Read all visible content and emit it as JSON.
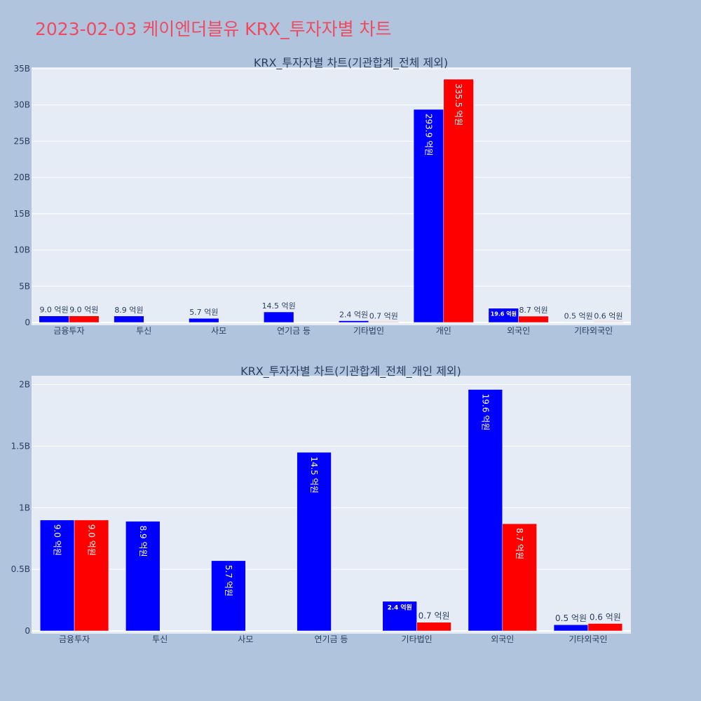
{
  "page": {
    "title": "2023-02-03 케이엔더블유 KRX_투자자별 차트"
  },
  "colors": {
    "background": "#b0c4de",
    "plot_bg": "#e5ecf6",
    "grid": "#ffffff",
    "title": "#ef4a60",
    "text": "#2a3f5f",
    "series": [
      "#0000ff",
      "#ff0000"
    ]
  },
  "chart_data": [
    {
      "type": "bar",
      "title": "KRX_투자자별 차트(기관합계_전체 제외)",
      "categories": [
        "금융투자",
        "투신",
        "사모",
        "연기금 등",
        "기타법인",
        "개인",
        "외국인",
        "기타외국인"
      ],
      "series": [
        {
          "values": [
            900000000,
            890000000,
            570000000,
            1450000000,
            240000000,
            29390000000,
            1960000000,
            50000000
          ],
          "labels": [
            "9.0 억원",
            "8.9 억원",
            "5.7 억원",
            "14.5 억원",
            "2.4 억원",
            "293.9 억원",
            "19.6 억원",
            "0.5 억원"
          ]
        },
        {
          "values": [
            900000000,
            null,
            null,
            null,
            70000000,
            33550000000,
            870000000,
            60000000
          ],
          "labels": [
            "9.0 억원",
            "",
            "",
            "",
            "0.7 억원",
            "335.5 억원",
            "8.7 억원",
            "0.6 억원"
          ]
        }
      ],
      "yticks": [
        0,
        5000000000,
        10000000000,
        15000000000,
        20000000000,
        25000000000,
        30000000000,
        35000000000
      ],
      "ytick_labels": [
        "0",
        "5B",
        "10B",
        "15B",
        "20B",
        "25B",
        "30B",
        "35B"
      ],
      "ylim": [
        0,
        35000000000
      ],
      "grid": true,
      "legend": "none"
    },
    {
      "type": "bar",
      "title": "KRX_투자자별 차트(기관합계_전체_개인 제외)",
      "categories": [
        "금융투자",
        "투신",
        "사모",
        "연기금 등",
        "기타법인",
        "외국인",
        "기타외국인"
      ],
      "series": [
        {
          "values": [
            900000000,
            890000000,
            570000000,
            1450000000,
            240000000,
            1960000000,
            50000000
          ],
          "labels": [
            "9.0 억원",
            "8.9 억원",
            "5.7 억원",
            "14.5 억원",
            "2.4 억원",
            "19.6 억원",
            "0.5 억원"
          ]
        },
        {
          "values": [
            900000000,
            null,
            null,
            null,
            70000000,
            870000000,
            60000000
          ],
          "labels": [
            "9.0 억원",
            "",
            "",
            "",
            "0.7 억원",
            "8.7 억원",
            "0.6 억원"
          ]
        }
      ],
      "yticks": [
        0,
        500000000,
        1000000000,
        1500000000,
        2000000000
      ],
      "ytick_labels": [
        "0",
        "0.5B",
        "1B",
        "1.5B",
        "2B"
      ],
      "ylim": [
        0,
        2060000000
      ],
      "grid": true,
      "legend": "none"
    }
  ]
}
